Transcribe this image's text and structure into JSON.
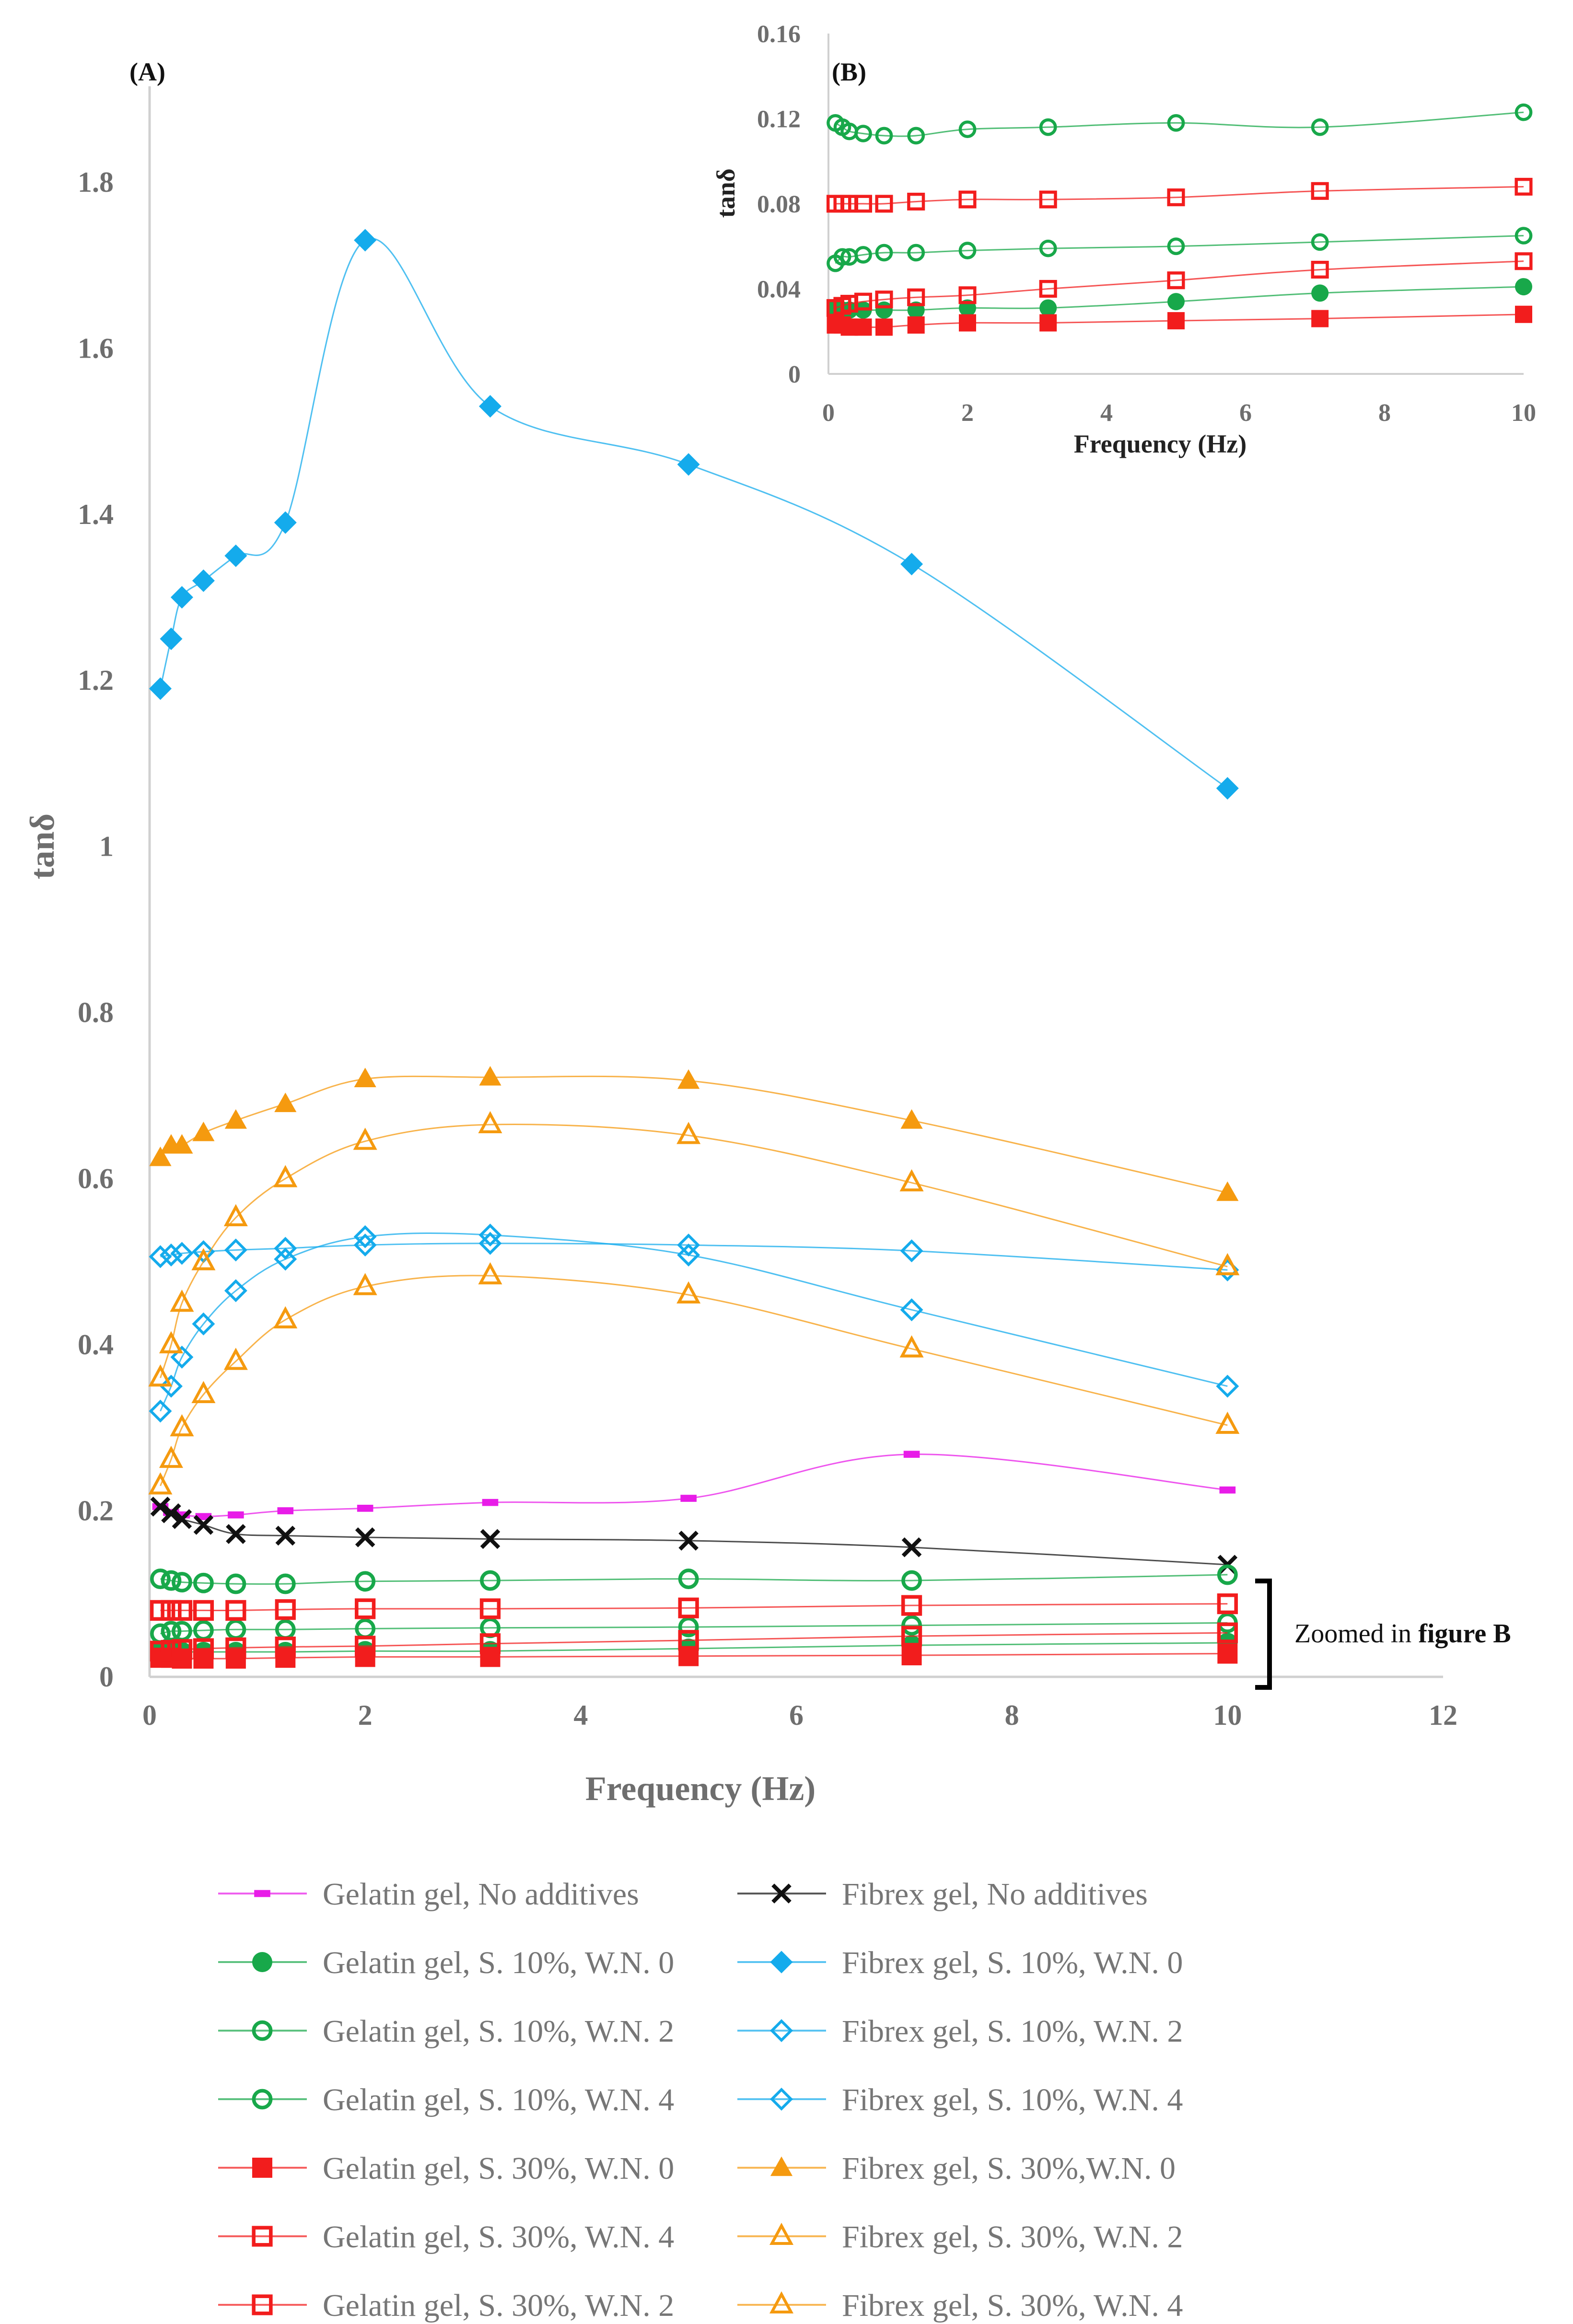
{
  "chart_data": [
    {
      "panel": "(A)",
      "type": "scatter",
      "xlabel": "Frequency (Hz)",
      "ylabel": "tanδ",
      "xlim": [
        0,
        12
      ],
      "ylim": [
        0,
        1.95
      ],
      "xticks": [
        0,
        2,
        4,
        6,
        8,
        10,
        12
      ],
      "yticks": [
        0,
        0.2,
        0.4,
        0.6,
        0.8,
        1,
        1.2,
        1.4,
        1.6,
        1.8
      ],
      "annotation": {
        "prefix": "Zoomed in ",
        "bold": "figure B"
      },
      "series": [
        {
          "name": "Gelatin gel, No additives",
          "color": "#E81CE8",
          "marker": "dash",
          "x": [
            0.1,
            0.2,
            0.3,
            0.5,
            0.8,
            1.26,
            2,
            3.16,
            5,
            7.07,
            10
          ],
          "y": [
            0.205,
            0.198,
            0.195,
            0.193,
            0.195,
            0.2,
            0.203,
            0.21,
            0.215,
            0.268,
            0.225
          ]
        },
        {
          "name": "Fibrex gel, No additives",
          "color": "#111111",
          "marker": "x",
          "x": [
            0.1,
            0.2,
            0.3,
            0.5,
            0.8,
            1.26,
            2,
            3.16,
            5,
            7.07,
            10
          ],
          "y": [
            0.205,
            0.197,
            0.19,
            0.183,
            0.172,
            0.17,
            0.168,
            0.166,
            0.164,
            0.156,
            0.135
          ]
        },
        {
          "name": "Gelatin gel, S. 10%, W.N. 0",
          "color": "#18A84A",
          "marker": "circle-filled",
          "x": [
            0.1,
            0.2,
            0.3,
            0.5,
            0.8,
            1.26,
            2,
            3.16,
            5,
            7.07,
            10
          ],
          "y": [
            0.031,
            0.03,
            0.03,
            0.03,
            0.03,
            0.03,
            0.031,
            0.031,
            0.034,
            0.038,
            0.041
          ]
        },
        {
          "name": "Fibrex gel, S. 10%, W.N. 0",
          "color": "#14ABEC",
          "marker": "diamond-filled",
          "x": [
            0.1,
            0.2,
            0.3,
            0.5,
            0.8,
            1.26,
            2,
            3.16,
            5,
            7.07,
            10
          ],
          "y": [
            1.19,
            1.25,
            1.3,
            1.32,
            1.35,
            1.39,
            1.73,
            1.53,
            1.46,
            1.34,
            1.07
          ]
        },
        {
          "name": "Gelatin gel, S. 10%, W.N. 2",
          "color": "#18A84A",
          "marker": "circle-open",
          "x": [
            0.1,
            0.2,
            0.3,
            0.5,
            0.8,
            1.26,
            2,
            3.16,
            5,
            7.07,
            10
          ],
          "y": [
            0.052,
            0.055,
            0.055,
            0.056,
            0.057,
            0.057,
            0.058,
            0.059,
            0.06,
            0.062,
            0.065
          ]
        },
        {
          "name": "Fibrex gel, S. 10%, W.N. 2",
          "color": "#14ABEC",
          "marker": "diamond-open",
          "x": [
            0.1,
            0.2,
            0.3,
            0.5,
            0.8,
            1.26,
            2,
            3.16,
            5,
            7.07,
            10
          ],
          "y": [
            0.506,
            0.508,
            0.51,
            0.512,
            0.514,
            0.516,
            0.52,
            0.522,
            0.52,
            0.513,
            0.49
          ]
        },
        {
          "name": "Gelatin gel, S. 10%, W.N. 4",
          "color": "#18A84A",
          "marker": "circle-open",
          "x": [
            0.1,
            0.2,
            0.3,
            0.5,
            0.8,
            1.26,
            2,
            3.16,
            5,
            7.07,
            10
          ],
          "y": [
            0.118,
            0.116,
            0.114,
            0.113,
            0.112,
            0.112,
            0.115,
            0.116,
            0.118,
            0.116,
            0.123
          ]
        },
        {
          "name": "Fibrex gel, S. 10%, W.N. 4",
          "color": "#14ABEC",
          "marker": "diamond-open",
          "x": [
            0.1,
            0.2,
            0.3,
            0.5,
            0.8,
            1.26,
            2,
            3.16,
            5,
            7.07,
            10
          ],
          "y": [
            0.32,
            0.35,
            0.385,
            0.425,
            0.465,
            0.503,
            0.53,
            0.532,
            0.508,
            0.442,
            0.35
          ]
        },
        {
          "name": "Gelatin gel, S. 30%, W.N. 0",
          "color": "#F21D1D",
          "marker": "square-filled",
          "x": [
            0.1,
            0.2,
            0.3,
            0.5,
            0.8,
            1.26,
            2,
            3.16,
            5,
            7.07,
            10
          ],
          "y": [
            0.023,
            0.023,
            0.022,
            0.022,
            0.022,
            0.023,
            0.024,
            0.024,
            0.025,
            0.026,
            0.028
          ]
        },
        {
          "name": "Fibrex gel, S. 30%,W.N. 0",
          "color": "#F59A0F",
          "marker": "triangle-filled",
          "x": [
            0.1,
            0.2,
            0.3,
            0.5,
            0.8,
            1.26,
            2,
            3.16,
            5,
            7.07,
            10
          ],
          "y": [
            0.625,
            0.64,
            0.64,
            0.655,
            0.67,
            0.69,
            0.72,
            0.722,
            0.718,
            0.67,
            0.583
          ]
        },
        {
          "name": "Gelatin gel, S. 30%, W.N. 4",
          "color": "#F21D1D",
          "marker": "square-open",
          "x": [
            0.1,
            0.2,
            0.3,
            0.5,
            0.8,
            1.26,
            2,
            3.16,
            5,
            7.07,
            10
          ],
          "y": [
            0.08,
            0.08,
            0.08,
            0.08,
            0.08,
            0.081,
            0.082,
            0.082,
            0.083,
            0.086,
            0.088
          ]
        },
        {
          "name": "Fibrex gel, S. 30%, W.N. 2",
          "color": "#F59A0F",
          "marker": "triangle-open",
          "x": [
            0.1,
            0.2,
            0.3,
            0.5,
            0.8,
            1.26,
            2,
            3.16,
            5,
            7.07,
            10
          ],
          "y": [
            0.36,
            0.4,
            0.45,
            0.5,
            0.553,
            0.6,
            0.645,
            0.665,
            0.652,
            0.595,
            0.494
          ]
        },
        {
          "name": "Gelatin gel, S. 30%, W.N. 2",
          "color": "#F21D1D",
          "marker": "square-open",
          "x": [
            0.1,
            0.2,
            0.3,
            0.5,
            0.8,
            1.26,
            2,
            3.16,
            5,
            7.07,
            10
          ],
          "y": [
            0.031,
            0.032,
            0.033,
            0.034,
            0.035,
            0.036,
            0.037,
            0.04,
            0.044,
            0.049,
            0.053
          ]
        },
        {
          "name": "Fibrex gel, S. 30%, W.N. 4",
          "color": "#F59A0F",
          "marker": "triangle-open",
          "x": [
            0.1,
            0.2,
            0.3,
            0.5,
            0.8,
            1.26,
            2,
            3.16,
            5,
            7.07,
            10
          ],
          "y": [
            0.23,
            0.262,
            0.3,
            0.34,
            0.38,
            0.43,
            0.47,
            0.483,
            0.46,
            0.395,
            0.303
          ]
        }
      ]
    },
    {
      "panel": "(B)",
      "type": "scatter",
      "xlabel": "Frequency (Hz)",
      "ylabel": "tanδ",
      "xlim": [
        0,
        10
      ],
      "ylim": [
        0,
        0.16
      ],
      "xticks": [
        0,
        2,
        4,
        6,
        8,
        10
      ],
      "yticks": [
        0,
        0.04,
        0.08,
        0.12,
        0.16
      ],
      "ytick_labels": [
        "0",
        "0.04",
        "0.08",
        "0.12",
        "0.16"
      ],
      "series_included": [
        "Gelatin gel, S. 10%, W.N. 0",
        "Gelatin gel, S. 10%, W.N. 2",
        "Gelatin gel, S. 10%, W.N. 4",
        "Gelatin gel, S. 30%, W.N. 0",
        "Gelatin gel, S. 30%, W.N. 4",
        "Gelatin gel, S. 30%, W.N. 2"
      ]
    }
  ]
}
